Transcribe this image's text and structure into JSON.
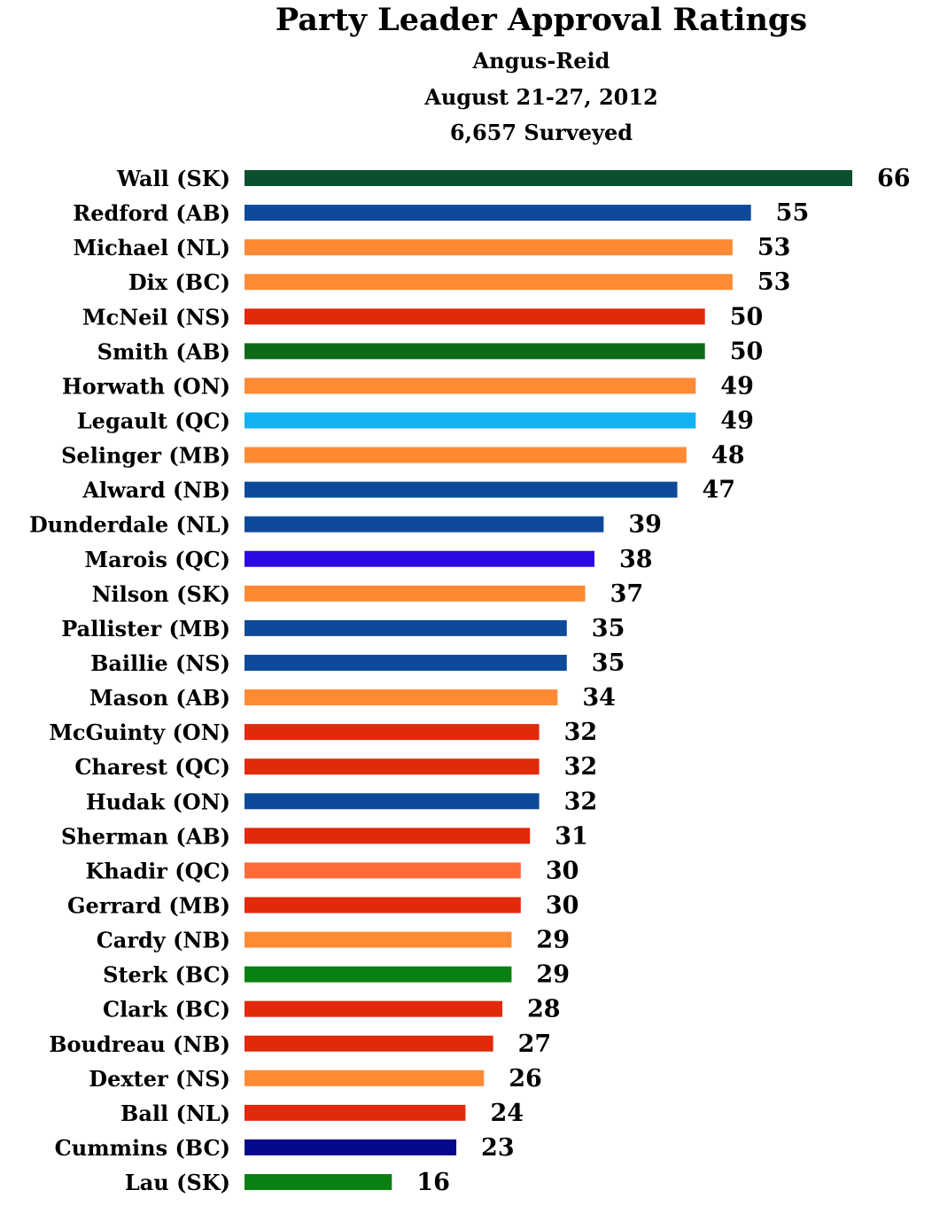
{
  "chart_data": {
    "type": "bar",
    "orientation": "horizontal",
    "title": "Party Leader Approval Ratings",
    "subtitle_lines": [
      "Angus-Reid",
      "August 21-27, 2012",
      "6,657 Surveyed"
    ],
    "xlabel": "",
    "ylabel": "",
    "grid": false,
    "legend": "none",
    "categories": [
      "Wall (SK)",
      "Redford (AB)",
      "Michael (NL)",
      "Dix (BC)",
      "McNeil (NS)",
      "Smith (AB)",
      "Horwath (ON)",
      "Legault (QC)",
      "Selinger (MB)",
      "Alward (NB)",
      "Dunderdale (NL)",
      "Marois (QC)",
      "Nilson (SK)",
      "Pallister (MB)",
      "Baillie (NS)",
      "Mason (AB)",
      "McGuinty (ON)",
      "Charest (QC)",
      "Hudak (ON)",
      "Sherman (AB)",
      "Khadir (QC)",
      "Gerrard (MB)",
      "Cardy (NB)",
      "Sterk (BC)",
      "Clark (BC)",
      "Boudreau (NB)",
      "Dexter (NS)",
      "Ball (NL)",
      "Cummins (BC)",
      "Lau (SK)"
    ],
    "values": [
      66,
      55,
      53,
      53,
      50,
      50,
      49,
      49,
      48,
      47,
      39,
      38,
      37,
      35,
      35,
      34,
      32,
      32,
      32,
      31,
      30,
      30,
      29,
      29,
      28,
      27,
      26,
      24,
      23,
      16
    ],
    "bar_colors": [
      "#0b4f2e",
      "#0d4b9a",
      "#ff8a34",
      "#ff8a34",
      "#e02a0b",
      "#0d6b17",
      "#ff8a34",
      "#10b2f2",
      "#ff8a34",
      "#0d4b9a",
      "#0d4b9a",
      "#2a0ae0",
      "#ff8a34",
      "#0d4b9a",
      "#0d4b9a",
      "#ff8a34",
      "#e02a0b",
      "#e02a0b",
      "#0d4b9a",
      "#e02a0b",
      "#ff6a38",
      "#e02a0b",
      "#ff8a34",
      "#0b8012",
      "#e02a0b",
      "#e02a0b",
      "#ff8a34",
      "#e02a0b",
      "#050a8a",
      "#0b8012"
    ],
    "xlim": [
      0,
      66
    ]
  }
}
